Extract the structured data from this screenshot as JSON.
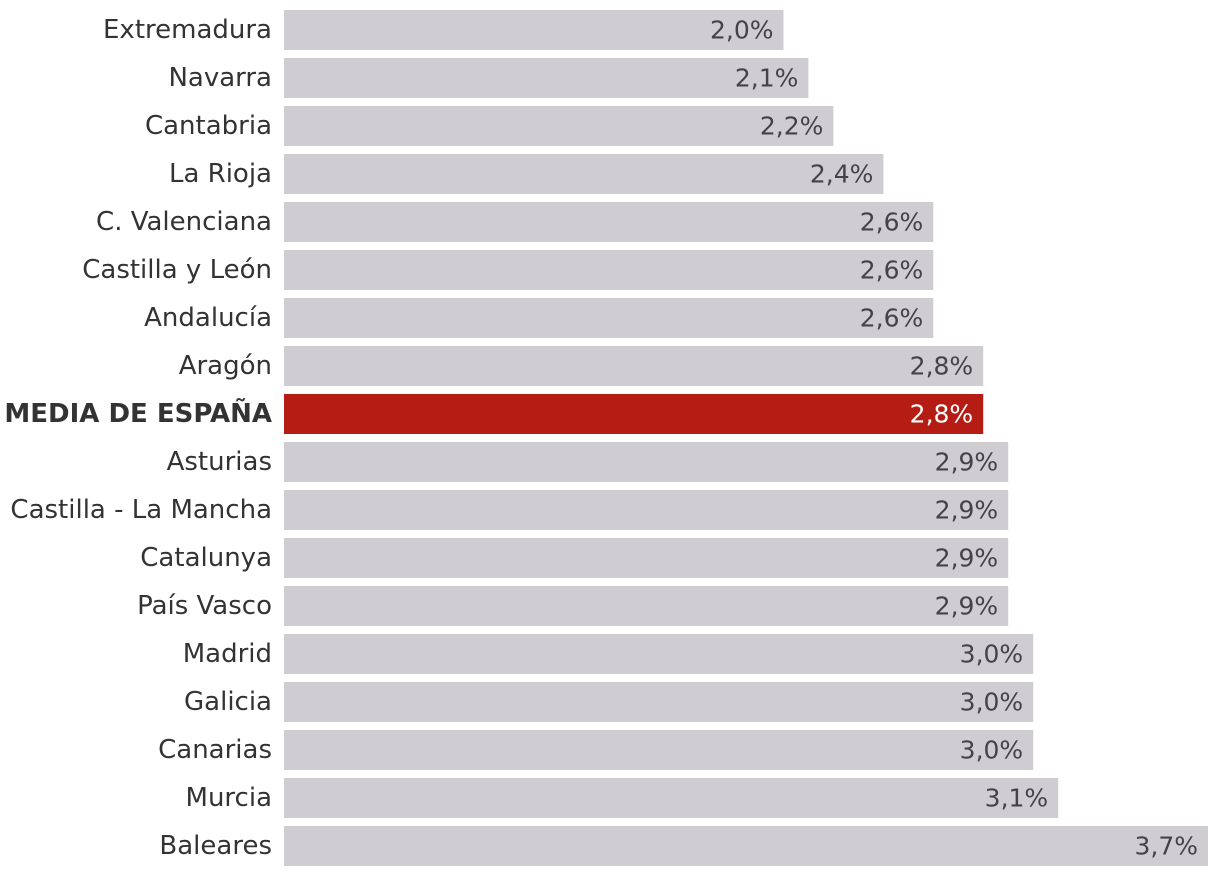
{
  "chart_data": {
    "type": "bar",
    "orientation": "horizontal",
    "title": "",
    "xlabel": "",
    "ylabel": "",
    "xlim": [
      0,
      3.7
    ],
    "grid": false,
    "legend": "none",
    "categories": [
      "Extremadura",
      "Navarra",
      "Cantabria",
      "La Rioja",
      "C. Valenciana",
      "Castilla y León",
      "Andalucía",
      "Aragón",
      "MEDIA DE ESPAÑA",
      "Asturias",
      "Castilla - La Mancha",
      "Catalunya",
      "País Vasco",
      "Madrid",
      "Galicia",
      "Canarias",
      "Murcia",
      "Baleares"
    ],
    "values": [
      2.0,
      2.1,
      2.2,
      2.4,
      2.6,
      2.6,
      2.6,
      2.8,
      2.8,
      2.9,
      2.9,
      2.9,
      2.9,
      3.0,
      3.0,
      3.0,
      3.1,
      3.7
    ],
    "value_labels": [
      "2,0%",
      "2,1%",
      "2,2%",
      "2,4%",
      "2,6%",
      "2,6%",
      "2,6%",
      "2,8%",
      "2,8%",
      "2,9%",
      "2,9%",
      "2,9%",
      "2,9%",
      "3,0%",
      "3,0%",
      "3,0%",
      "3,1%",
      "3,7%"
    ],
    "highlight_category": "MEDIA DE ESPAÑA",
    "colors": {
      "bar": "#cfcdd2",
      "highlight_bar": "#b51d14"
    }
  }
}
